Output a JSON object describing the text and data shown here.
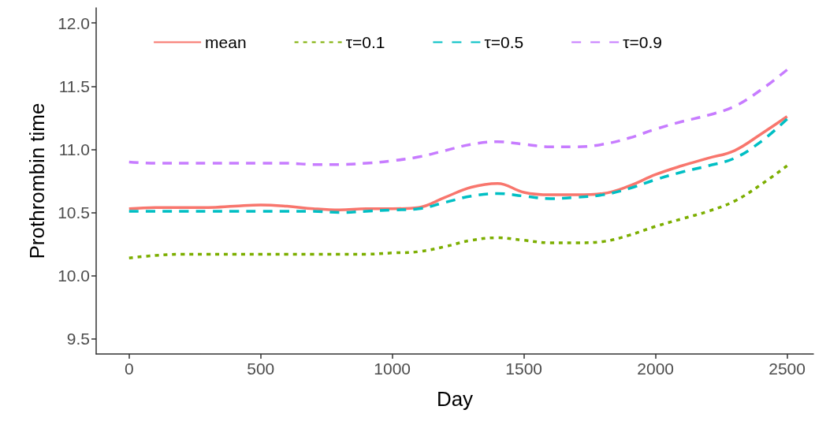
{
  "chart_data": {
    "type": "line",
    "xlabel": "Day",
    "ylabel": "Prothrombin time",
    "x": [
      0,
      100,
      200,
      300,
      400,
      500,
      600,
      700,
      800,
      900,
      1000,
      1100,
      1200,
      1300,
      1400,
      1500,
      1600,
      1700,
      1800,
      1900,
      2000,
      2100,
      2200,
      2300,
      2400,
      2500
    ],
    "series": [
      {
        "name": "mean",
        "color": "#f8766d",
        "line_style": "solid",
        "values": [
          10.53,
          10.54,
          10.54,
          10.54,
          10.55,
          10.56,
          10.55,
          10.53,
          10.52,
          10.53,
          10.53,
          10.54,
          10.62,
          10.7,
          10.73,
          10.66,
          10.64,
          10.64,
          10.65,
          10.71,
          10.8,
          10.87,
          10.93,
          10.99,
          11.12,
          11.26
        ]
      },
      {
        "name": "τ=0.1",
        "color": "#7cae00",
        "line_style": "dotted",
        "values": [
          10.14,
          10.16,
          10.17,
          10.17,
          10.17,
          10.17,
          10.17,
          10.17,
          10.17,
          10.17,
          10.18,
          10.19,
          10.23,
          10.28,
          10.3,
          10.28,
          10.26,
          10.26,
          10.27,
          10.32,
          10.39,
          10.45,
          10.51,
          10.59,
          10.72,
          10.87
        ]
      },
      {
        "name": "τ=0.5",
        "color": "#00bfc4",
        "line_style": "dashed",
        "values": [
          10.51,
          10.51,
          10.51,
          10.51,
          10.51,
          10.51,
          10.51,
          10.51,
          10.5,
          10.51,
          10.52,
          10.53,
          10.58,
          10.63,
          10.65,
          10.63,
          10.61,
          10.62,
          10.64,
          10.69,
          10.76,
          10.82,
          10.87,
          10.93,
          11.06,
          11.24
        ]
      },
      {
        "name": "τ=0.9",
        "color": "#c77cff",
        "line_style": "dashed",
        "values": [
          10.9,
          10.89,
          10.89,
          10.89,
          10.89,
          10.89,
          10.89,
          10.88,
          10.88,
          10.89,
          10.91,
          10.94,
          10.99,
          11.04,
          11.06,
          11.04,
          11.02,
          11.02,
          11.04,
          11.09,
          11.16,
          11.22,
          11.27,
          11.34,
          11.47,
          11.63
        ]
      }
    ],
    "xlim": [
      -125,
      2600
    ],
    "xticks": [
      0,
      500,
      1000,
      1500,
      2000,
      2500
    ],
    "ylim": [
      9.38,
      12.12
    ],
    "yticks": [
      9.5,
      {
        "value": 10,
        "label": "10.0"
      },
      10.5,
      {
        "value": 11,
        "label": "11.0"
      },
      11.5,
      {
        "value": 12,
        "label": "12.0"
      }
    ],
    "legend": "top",
    "grid": false,
    "marker": "none"
  }
}
